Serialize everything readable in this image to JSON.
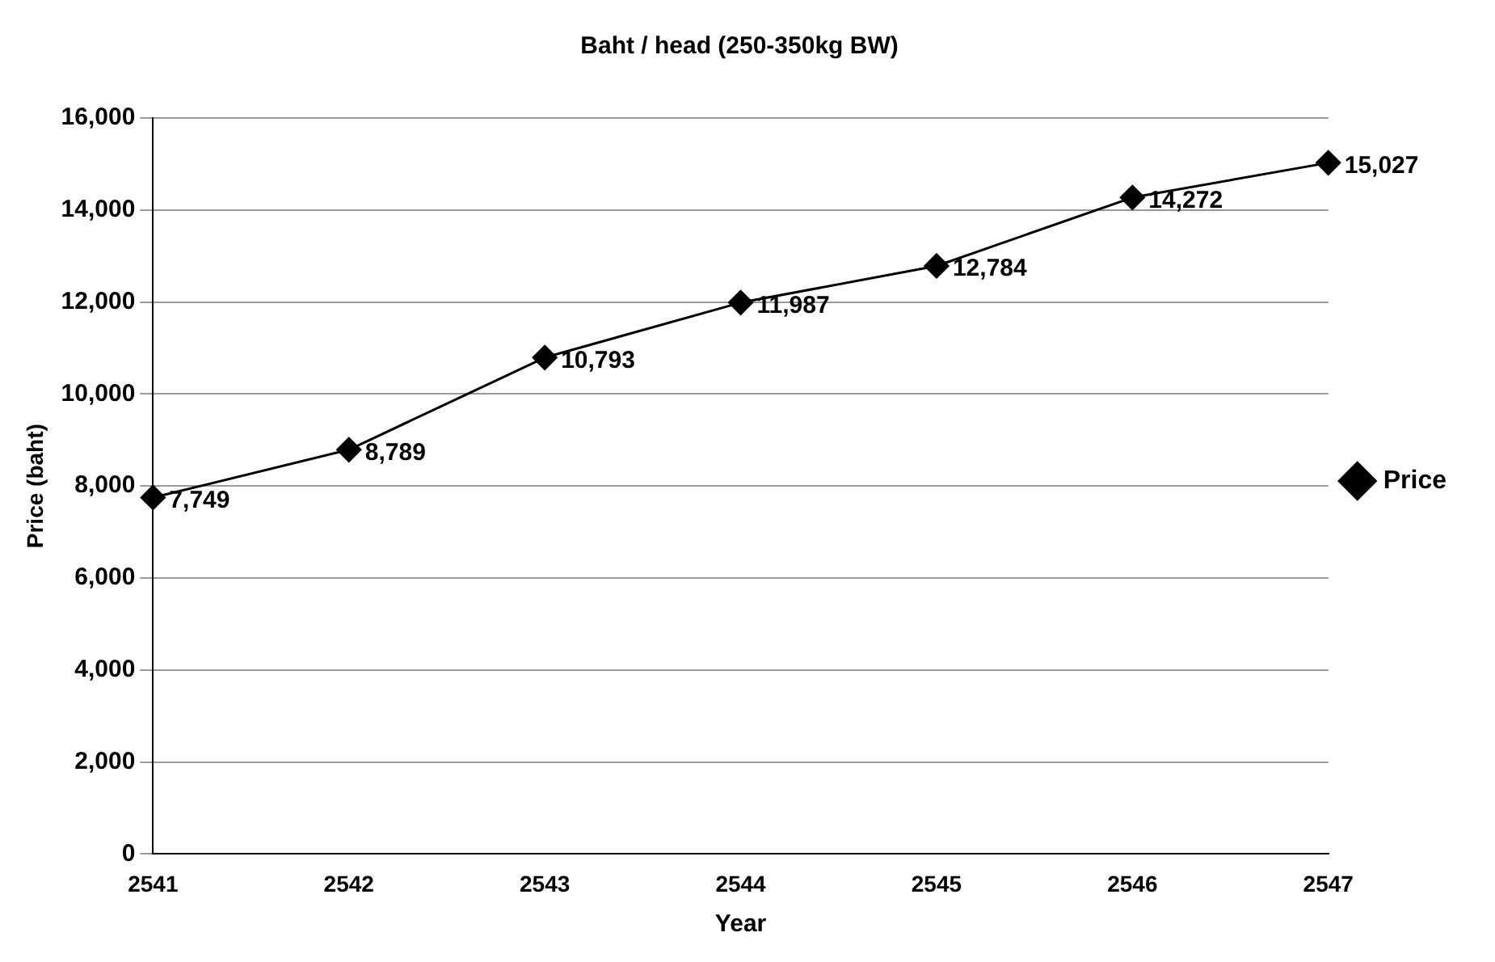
{
  "chart_data": {
    "type": "line",
    "title": "Baht / head (250-350kg BW)",
    "xlabel": "Year",
    "ylabel": "Price (baht)",
    "categories": [
      "2541",
      "2542",
      "2543",
      "2544",
      "2545",
      "2546",
      "2547"
    ],
    "series": [
      {
        "name": "Price",
        "color": "#000000",
        "values": [
          7749,
          8789,
          10793,
          11987,
          12784,
          14272,
          15027
        ],
        "value_labels": [
          "7,749",
          "8,789",
          "10,793",
          "11,987",
          "12,784",
          "14,272",
          "15,027"
        ]
      }
    ],
    "ylim": [
      0,
      16000
    ],
    "yticks": [
      {
        "value": 0,
        "label": "0"
      },
      {
        "value": 2000,
        "label": "2,000"
      },
      {
        "value": 4000,
        "label": "4,000"
      },
      {
        "value": 6000,
        "label": "6,000"
      },
      {
        "value": 8000,
        "label": "8,000"
      },
      {
        "value": 10000,
        "label": "10,000"
      },
      {
        "value": 12000,
        "label": "12,000"
      },
      {
        "value": 14000,
        "label": "14,000"
      },
      {
        "value": 16000,
        "label": "16,000"
      }
    ],
    "grid": "y",
    "legend": "right",
    "marker": "diamond",
    "line_style": "solid"
  }
}
